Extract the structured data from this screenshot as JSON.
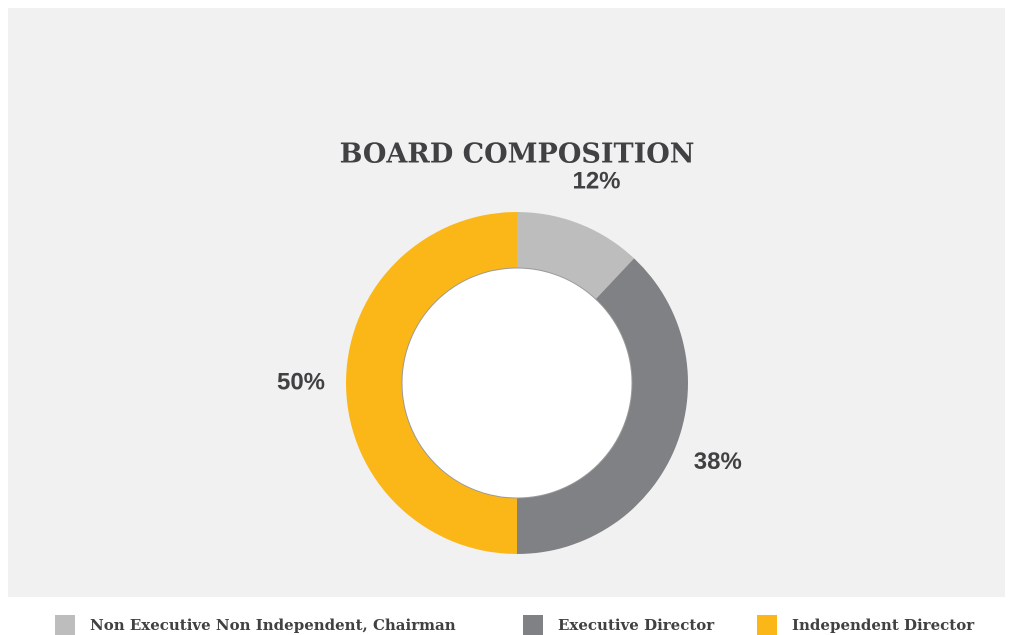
{
  "chart_data": {
    "type": "pie",
    "title": "BOARD COMPOSITION",
    "categories": [
      "Non Executive Non Independent, Chairman",
      "Executive Director",
      "Independent Director"
    ],
    "values": [
      12,
      38,
      50
    ],
    "value_labels": [
      "12%",
      "38%",
      "50%"
    ],
    "colors": [
      "#bdbdbd",
      "#808184",
      "#fbb717"
    ]
  }
}
